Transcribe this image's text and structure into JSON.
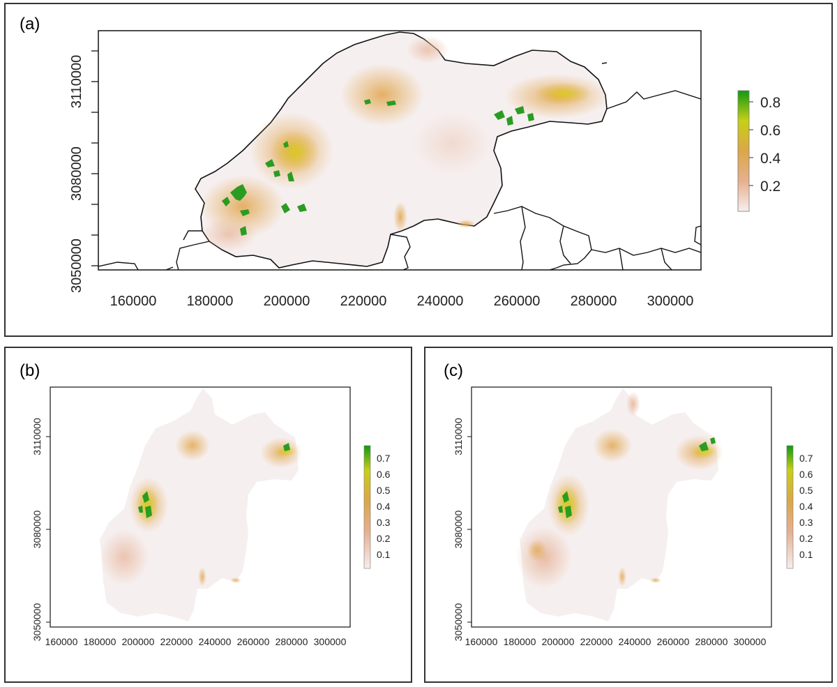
{
  "panels": {
    "a": {
      "label": "(a)",
      "x_ticks": [
        "160000",
        "180000",
        "200000",
        "220000",
        "240000",
        "260000",
        "280000",
        "300000"
      ],
      "y_ticks": [
        "3050000",
        "3080000",
        "3110000"
      ],
      "legend": {
        "ticks": [
          "0.2",
          "0.4",
          "0.6",
          "0.8"
        ],
        "max": 0.8
      }
    },
    "b": {
      "label": "(b)",
      "x_ticks": [
        "160000",
        "180000",
        "200000",
        "220000",
        "240000",
        "260000",
        "280000",
        "300000"
      ],
      "y_ticks": [
        "3050000",
        "3080000",
        "3110000"
      ],
      "legend": {
        "ticks": [
          "0.1",
          "0.2",
          "0.3",
          "0.4",
          "0.5",
          "0.6",
          "0.7"
        ],
        "max": 0.7
      }
    },
    "c": {
      "label": "(c)",
      "x_ticks": [
        "160000",
        "180000",
        "200000",
        "220000",
        "240000",
        "260000",
        "280000",
        "300000"
      ],
      "y_ticks": [
        "3050000",
        "3080000",
        "3110000"
      ],
      "legend": {
        "ticks": [
          "0.1",
          "0.2",
          "0.3",
          "0.4",
          "0.5",
          "0.6",
          "0.7"
        ],
        "max": 0.7
      }
    }
  },
  "colors": {
    "low": "#f6efef",
    "pink": "#ecc4b0",
    "orange": "#e0a860",
    "yellow": "#d8d020",
    "green": "#1a9a1a",
    "border": "#111111"
  }
}
